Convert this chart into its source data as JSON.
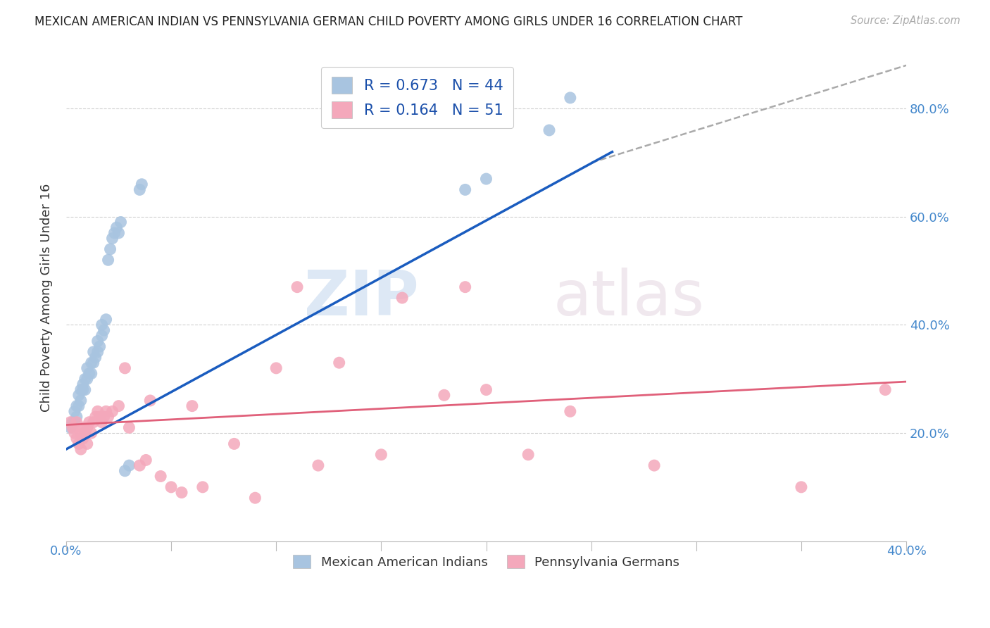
{
  "title": "MEXICAN AMERICAN INDIAN VS PENNSYLVANIA GERMAN CHILD POVERTY AMONG GIRLS UNDER 16 CORRELATION CHART",
  "source": "Source: ZipAtlas.com",
  "ylabel": "Child Poverty Among Girls Under 16",
  "xlim": [
    0.0,
    0.4
  ],
  "ylim": [
    0.0,
    0.9
  ],
  "blue_color": "#a8c4e0",
  "pink_color": "#f4a8bb",
  "blue_line_color": "#1a5cbf",
  "pink_line_color": "#e0607a",
  "blue_scatter": [
    [
      0.002,
      0.21
    ],
    [
      0.003,
      0.22
    ],
    [
      0.004,
      0.22
    ],
    [
      0.004,
      0.24
    ],
    [
      0.005,
      0.23
    ],
    [
      0.005,
      0.25
    ],
    [
      0.006,
      0.25
    ],
    [
      0.006,
      0.27
    ],
    [
      0.007,
      0.26
    ],
    [
      0.007,
      0.28
    ],
    [
      0.008,
      0.28
    ],
    [
      0.008,
      0.29
    ],
    [
      0.009,
      0.28
    ],
    [
      0.009,
      0.3
    ],
    [
      0.01,
      0.3
    ],
    [
      0.01,
      0.32
    ],
    [
      0.011,
      0.31
    ],
    [
      0.012,
      0.31
    ],
    [
      0.012,
      0.33
    ],
    [
      0.013,
      0.33
    ],
    [
      0.013,
      0.35
    ],
    [
      0.014,
      0.34
    ],
    [
      0.015,
      0.35
    ],
    [
      0.015,
      0.37
    ],
    [
      0.016,
      0.36
    ],
    [
      0.017,
      0.38
    ],
    [
      0.017,
      0.4
    ],
    [
      0.018,
      0.39
    ],
    [
      0.019,
      0.41
    ],
    [
      0.02,
      0.52
    ],
    [
      0.021,
      0.54
    ],
    [
      0.022,
      0.56
    ],
    [
      0.023,
      0.57
    ],
    [
      0.024,
      0.58
    ],
    [
      0.025,
      0.57
    ],
    [
      0.026,
      0.59
    ],
    [
      0.028,
      0.13
    ],
    [
      0.03,
      0.14
    ],
    [
      0.035,
      0.65
    ],
    [
      0.036,
      0.66
    ],
    [
      0.19,
      0.65
    ],
    [
      0.2,
      0.67
    ],
    [
      0.23,
      0.76
    ],
    [
      0.24,
      0.82
    ]
  ],
  "pink_scatter": [
    [
      0.002,
      0.22
    ],
    [
      0.003,
      0.21
    ],
    [
      0.004,
      0.2
    ],
    [
      0.005,
      0.19
    ],
    [
      0.005,
      0.22
    ],
    [
      0.006,
      0.18
    ],
    [
      0.007,
      0.17
    ],
    [
      0.007,
      0.2
    ],
    [
      0.008,
      0.19
    ],
    [
      0.008,
      0.21
    ],
    [
      0.009,
      0.2
    ],
    [
      0.01,
      0.21
    ],
    [
      0.01,
      0.18
    ],
    [
      0.011,
      0.22
    ],
    [
      0.012,
      0.2
    ],
    [
      0.013,
      0.22
    ],
    [
      0.014,
      0.23
    ],
    [
      0.015,
      0.24
    ],
    [
      0.016,
      0.23
    ],
    [
      0.017,
      0.22
    ],
    [
      0.018,
      0.23
    ],
    [
      0.019,
      0.24
    ],
    [
      0.02,
      0.23
    ],
    [
      0.022,
      0.24
    ],
    [
      0.025,
      0.25
    ],
    [
      0.028,
      0.32
    ],
    [
      0.03,
      0.21
    ],
    [
      0.035,
      0.14
    ],
    [
      0.038,
      0.15
    ],
    [
      0.04,
      0.26
    ],
    [
      0.045,
      0.12
    ],
    [
      0.05,
      0.1
    ],
    [
      0.055,
      0.09
    ],
    [
      0.06,
      0.25
    ],
    [
      0.065,
      0.1
    ],
    [
      0.08,
      0.18
    ],
    [
      0.09,
      0.08
    ],
    [
      0.1,
      0.32
    ],
    [
      0.11,
      0.47
    ],
    [
      0.12,
      0.14
    ],
    [
      0.13,
      0.33
    ],
    [
      0.15,
      0.16
    ],
    [
      0.16,
      0.45
    ],
    [
      0.18,
      0.27
    ],
    [
      0.19,
      0.47
    ],
    [
      0.2,
      0.28
    ],
    [
      0.22,
      0.16
    ],
    [
      0.24,
      0.24
    ],
    [
      0.28,
      0.14
    ],
    [
      0.35,
      0.1
    ],
    [
      0.39,
      0.28
    ]
  ],
  "watermark_zip": "ZIP",
  "watermark_atlas": "atlas",
  "background_color": "#ffffff",
  "grid_color": "#d0d0d0",
  "legend_r1": "R = 0.673",
  "legend_n1": "N = 44",
  "legend_r2": "R = 0.164",
  "legend_n2": "N = 51"
}
